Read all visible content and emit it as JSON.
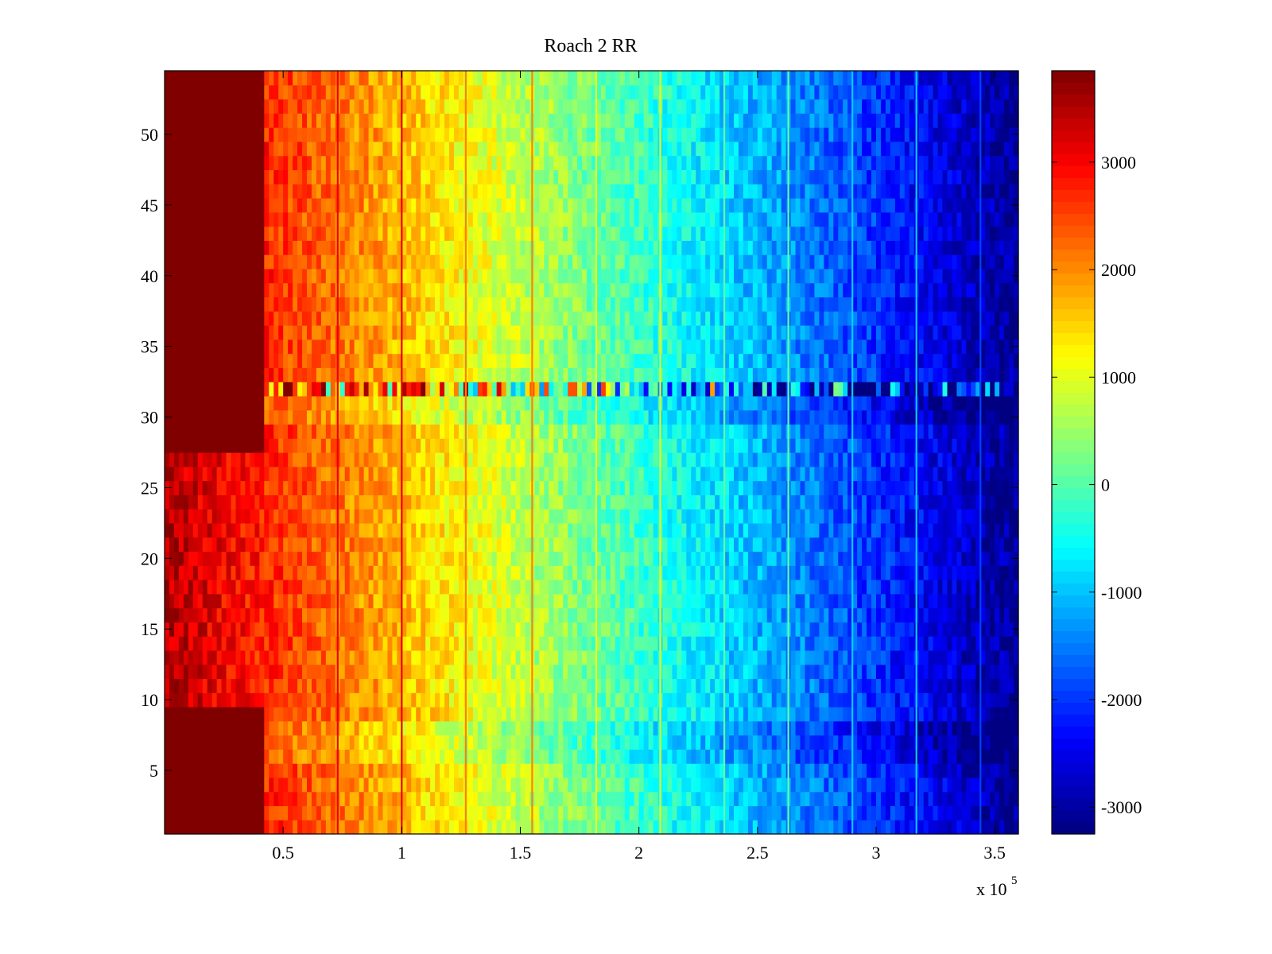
{
  "chart_data": {
    "type": "heatmap",
    "title": "Roach 2 RR",
    "xlabel": "",
    "ylabel": "",
    "x_multiplier_label": "x 10",
    "x_multiplier_exponent": "5",
    "xlim": [
      0,
      3.6
    ],
    "ylim": [
      0.5,
      54.5
    ],
    "n_rows": 54,
    "x_ticks": [
      {
        "value": 0.5,
        "label": "0.5"
      },
      {
        "value": 1,
        "label": "1"
      },
      {
        "value": 1.5,
        "label": "1.5"
      },
      {
        "value": 2,
        "label": "2"
      },
      {
        "value": 2.5,
        "label": "2.5"
      },
      {
        "value": 3,
        "label": "3"
      },
      {
        "value": 3.5,
        "label": "3.5"
      }
    ],
    "y_ticks": [
      {
        "value": 5,
        "label": "5"
      },
      {
        "value": 10,
        "label": "10"
      },
      {
        "value": 15,
        "label": "15"
      },
      {
        "value": 20,
        "label": "20"
      },
      {
        "value": 25,
        "label": "25"
      },
      {
        "value": 30,
        "label": "30"
      },
      {
        "value": 35,
        "label": "35"
      },
      {
        "value": 40,
        "label": "40"
      },
      {
        "value": 45,
        "label": "45"
      },
      {
        "value": 50,
        "label": "50"
      }
    ],
    "colorbar": {
      "colormap": "jet",
      "range": [
        -3250,
        3850
      ],
      "ticks": [
        {
          "value": 3000,
          "label": "3000"
        },
        {
          "value": 2000,
          "label": "2000"
        },
        {
          "value": 1000,
          "label": "1000"
        },
        {
          "value": 0,
          "label": "0"
        },
        {
          "value": -1000,
          "label": "-1000"
        },
        {
          "value": -2000,
          "label": "-2000"
        },
        {
          "value": -3000,
          "label": "-3000"
        }
      ]
    },
    "trend": {
      "description": "value decreases roughly linearly with x",
      "value_at_x0": 3500,
      "slope_per_unit_x": -1840
    },
    "saturated_region": {
      "x_range": [
        0,
        0.43
      ],
      "row_ranges": [
        [
          1,
          9
        ],
        [
          28,
          54
        ]
      ],
      "value": 3850
    },
    "vertical_lines_x": [
      0.73,
      1.0,
      1.27,
      1.55,
      1.82,
      2.09,
      2.36,
      2.63,
      2.9,
      3.17,
      3.44
    ],
    "noisy_row": 32,
    "dark_rows": [
      6,
      7,
      8,
      31,
      30
    ]
  }
}
